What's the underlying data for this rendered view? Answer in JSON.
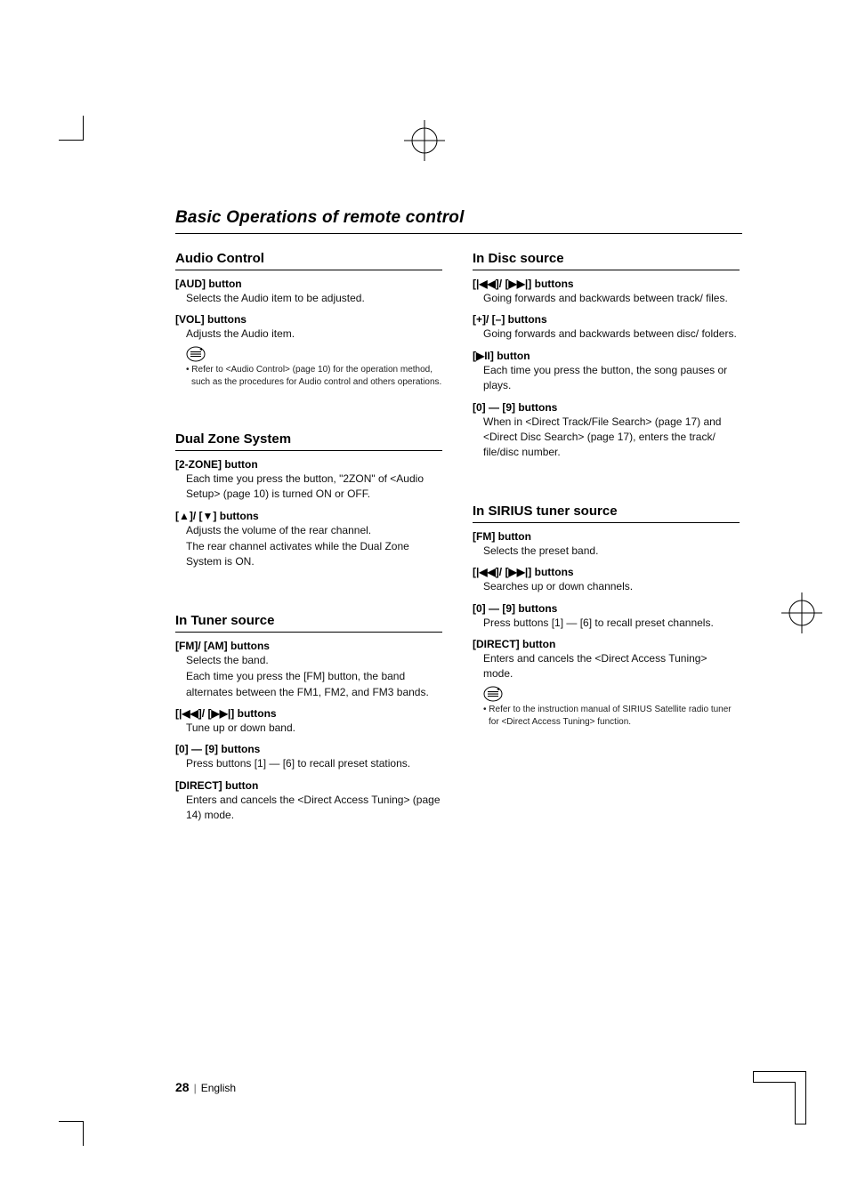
{
  "page_title": "Basic Operations of remote control",
  "left_col": [
    {
      "heading": "Audio Control",
      "items": [
        {
          "label": "[AUD] button",
          "desc": "Selects the Audio item to be adjusted."
        },
        {
          "label": "[VOL] buttons",
          "desc": "Adjusts the Audio item.",
          "note": "Refer to <Audio Control> (page 10) for the operation method, such as the procedures for Audio control and others operations."
        }
      ]
    },
    {
      "heading": "Dual Zone System",
      "items": [
        {
          "label": "[2-ZONE] button",
          "desc": "Each time you press the button, \"2ZON\" of <Audio Setup> (page 10) is turned ON or OFF."
        },
        {
          "label": "[▲]/ [▼] buttons",
          "desc": "Adjusts the volume of the rear channel.\nThe rear channel activates while the Dual Zone System is ON."
        }
      ]
    },
    {
      "heading": "In Tuner source",
      "items": [
        {
          "label": "[FM]/ [AM] buttons",
          "desc": "Selects the band.\nEach time you press the [FM] button, the band alternates between the FM1, FM2, and FM3 bands."
        },
        {
          "label": "[|◀◀]/ [▶▶|] buttons",
          "desc": "Tune up or down band."
        },
        {
          "label": "[0] — [9] buttons",
          "desc": "Press buttons [1] — [6] to recall preset stations."
        },
        {
          "label": "[DIRECT] button",
          "desc": "Enters and cancels the <Direct Access Tuning> (page 14) mode."
        }
      ]
    }
  ],
  "right_col": [
    {
      "heading": "In Disc source",
      "items": [
        {
          "label": "[|◀◀]/ [▶▶|] buttons",
          "desc": "Going forwards and backwards between track/ files."
        },
        {
          "label": "[+]/ [–] buttons",
          "desc": "Going forwards and backwards between disc/ folders."
        },
        {
          "label": "[▶II] button",
          "desc": "Each time you press the button, the song pauses or plays."
        },
        {
          "label": "[0] — [9] buttons",
          "desc": "When in <Direct Track/File Search> (page 17) and <Direct Disc Search> (page 17), enters the track/ file/disc number."
        }
      ]
    },
    {
      "heading": "In SIRIUS tuner source",
      "items": [
        {
          "label": "[FM] button",
          "desc": "Selects the preset band."
        },
        {
          "label": "[|◀◀]/ [▶▶|] buttons",
          "desc": "Searches up or down channels."
        },
        {
          "label": "[0] — [9] buttons",
          "desc": "Press buttons [1] — [6] to recall preset channels."
        },
        {
          "label": "[DIRECT] button",
          "desc": "Enters and cancels the <Direct Access Tuning> mode.",
          "note": "Refer to the instruction manual of SIRIUS Satellite radio tuner for <Direct Access Tuning> function."
        }
      ]
    }
  ],
  "footer": {
    "page": "28",
    "lang": "English"
  }
}
